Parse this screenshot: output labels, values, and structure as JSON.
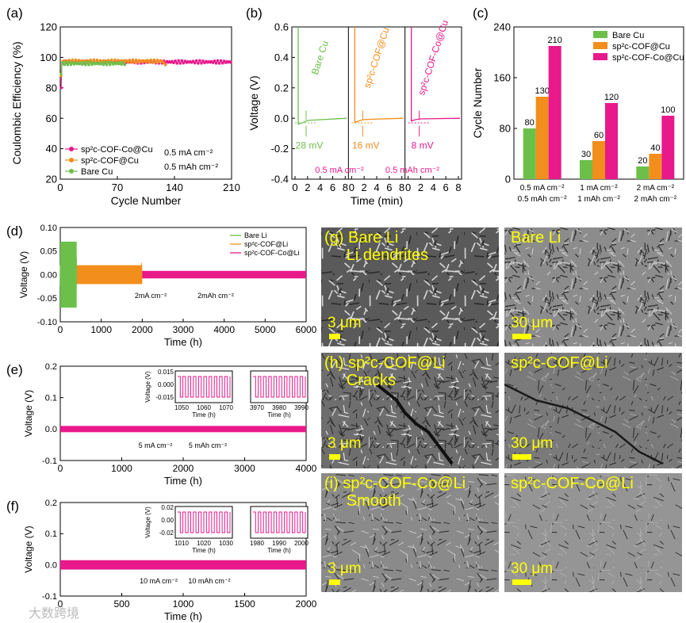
{
  "chart_data": [
    {
      "id": "a",
      "type": "scatter",
      "panel_label": "(a)",
      "xlabel": "Cycle Number",
      "ylabel": "Coulombic Efficiency (%)",
      "xlim": [
        0,
        210
      ],
      "ylim": [
        20,
        120
      ],
      "xticks": [
        "0",
        "70",
        "140",
        "210"
      ],
      "yticks": [
        "20",
        "40",
        "60",
        "80",
        "100",
        "120"
      ],
      "annotations": [
        "0.5 mA cm⁻²",
        "0.5 mAh cm⁻²"
      ],
      "series": [
        {
          "name": "sp²c-COF-Co@Cu",
          "color": "#e8198b",
          "cycles": 210,
          "first": 80,
          "plateau": 97
        },
        {
          "name": "sp²c-COF@Cu",
          "color": "#f28e1c",
          "cycles": 130,
          "first": 88,
          "plateau": 97.5
        },
        {
          "name": "Bare Cu",
          "color": "#6cc04a",
          "cycles": 80,
          "first": 89,
          "plateau": 96
        }
      ]
    },
    {
      "id": "b",
      "type": "line",
      "panel_label": "(b)",
      "xlabel": "Time (min)",
      "ylabel": "Voltage (V)",
      "ylim": [
        -0.4,
        0.6
      ],
      "yticks": [
        "-0.4",
        "-0.2",
        "0.0",
        "0.2",
        "0.4",
        "0.6"
      ],
      "xticks": [
        "0",
        "2",
        "4",
        "6",
        "8",
        "0",
        "2",
        "4",
        "6",
        "8",
        "0",
        "2",
        "4",
        "6",
        "8"
      ],
      "annotations": [
        "0.5 mA cm⁻²",
        "0.5 mAh cm⁻²"
      ],
      "series": [
        {
          "name": "Bare Cu",
          "color": "#6cc04a",
          "overpotential": "28 mV",
          "nucleation_v": -0.028
        },
        {
          "name": "sp²c-COF@Cu",
          "color": "#f28e1c",
          "overpotential": "16 mV",
          "nucleation_v": -0.016
        },
        {
          "name": "sp²c-COF-Co@Cu",
          "color": "#e8198b",
          "overpotential": "8 mV",
          "nucleation_v": -0.008
        }
      ]
    },
    {
      "id": "c",
      "type": "bar",
      "panel_label": "(c)",
      "ylabel": "Cycle Number",
      "ylim": [
        0,
        240
      ],
      "yticks": [
        "0",
        "80",
        "160",
        "240"
      ],
      "categories": [
        [
          "0.5 mA cm⁻²",
          "0.5 mAh cm⁻²"
        ],
        [
          "1 mA cm⁻²",
          "1 mAh cm⁻²"
        ],
        [
          "2 mA cm⁻²",
          "2 mAh cm⁻²"
        ]
      ],
      "series": [
        {
          "name": "Bare Cu",
          "color": "#6cc04a",
          "values": [
            80,
            30,
            20
          ]
        },
        {
          "name": "sp²c-COF@Cu",
          "color": "#f28e1c",
          "values": [
            130,
            60,
            40
          ]
        },
        {
          "name": "sp²c-COF-Co@Cu",
          "color": "#e8198b",
          "values": [
            210,
            120,
            100
          ]
        }
      ]
    },
    {
      "id": "d",
      "type": "line",
      "panel_label": "(d)",
      "xlabel": "Time (h)",
      "ylabel": "Voltage (V)",
      "xlim": [
        0,
        6000
      ],
      "ylim": [
        -0.1,
        0.1
      ],
      "xticks": [
        "0",
        "1000",
        "2000",
        "3000",
        "4000",
        "5000",
        "6000"
      ],
      "yticks": [
        "-0.10",
        "-0.05",
        "0.00",
        "0.05",
        "0.10"
      ],
      "annotations": [
        "2mA cm⁻²",
        "2mAh cm⁻²"
      ],
      "series": [
        {
          "name": "Bare Li",
          "color": "#6cc04a",
          "end_h": 400,
          "amp": 0.07
        },
        {
          "name": "sp²c-COF@Li",
          "color": "#f28e1c",
          "end_h": 2000,
          "amp": 0.02
        },
        {
          "name": "sp²c-COF-Co@Li",
          "color": "#e8198b",
          "end_h": 6000,
          "amp": 0.008
        }
      ]
    },
    {
      "id": "e",
      "type": "line",
      "panel_label": "(e)",
      "xlabel": "Time (h)",
      "ylabel": "Voltage (V)",
      "xlim": [
        0,
        4000
      ],
      "ylim": [
        -0.1,
        0.2
      ],
      "xticks": [
        "0",
        "1000",
        "2000",
        "3000",
        "4000"
      ],
      "yticks": [
        "-0.1",
        "0.0",
        "0.1",
        "0.2"
      ],
      "annotations": [
        "5 mA cm⁻²",
        "5 mAh cm⁻²"
      ],
      "series": [
        {
          "name": "sp²c-COF-Co@Li",
          "color": "#e8198b",
          "amp": 0.01
        }
      ],
      "insets": [
        {
          "xlabel": "Time (h)",
          "ylabel": "Voltage (V)",
          "xticks": [
            "1050",
            "1060",
            "1070"
          ],
          "yticks": [
            "-0.015",
            "0.000",
            "0.015"
          ],
          "cycles": 10
        },
        {
          "xlabel": "Time (h)",
          "ylabel": "",
          "xticks": [
            "3970",
            "3980",
            "3990"
          ],
          "yticks": [],
          "cycles": 10
        }
      ]
    },
    {
      "id": "f",
      "type": "line",
      "panel_label": "(f)",
      "xlabel": "Time (h)",
      "ylabel": "Voltage (V)",
      "xlim": [
        0,
        2000
      ],
      "ylim": [
        -0.1,
        0.2
      ],
      "xticks": [
        "0",
        "500",
        "1000",
        "1500",
        "2000"
      ],
      "yticks": [
        "-0.1",
        "0.0",
        "0.1",
        "0.2"
      ],
      "annotations": [
        "10 mA cm⁻²",
        "10 mAh cm⁻²"
      ],
      "series": [
        {
          "name": "sp²c-COF-Co@Li",
          "color": "#e8198b",
          "amp": 0.015
        }
      ],
      "insets": [
        {
          "xlabel": "Time (h)",
          "ylabel": "Voltage (V)",
          "xticks": [
            "1010",
            "1020",
            "1030"
          ],
          "yticks": [
            "-0.02",
            "0.00",
            "0.02"
          ],
          "cycles": 10
        },
        {
          "xlabel": "Time (h)",
          "ylabel": "",
          "xticks": [
            "1980",
            "1990",
            "2000"
          ],
          "yticks": [],
          "cycles": 10
        }
      ]
    }
  ],
  "sem": {
    "g_left": {
      "lines": [
        "(g) Bare Li",
        "     Li dendrites"
      ],
      "scale": "3 μm"
    },
    "g_right": {
      "lines": [
        "Bare Li"
      ],
      "scale": "30 μm"
    },
    "h_left": {
      "lines": [
        "(h) sp²c-COF@Li",
        "     Cracks"
      ],
      "scale": "3 μm"
    },
    "h_right": {
      "lines": [
        "sp²c-COF@Li"
      ],
      "scale": "30 μm"
    },
    "i_left": {
      "lines": [
        "(i) sp²c-COF-Co@Li",
        "     Smooth"
      ],
      "scale": "3 μm"
    },
    "i_right": {
      "lines": [
        "sp²c-COF-Co@Li"
      ],
      "scale": "30 μm"
    }
  },
  "watermark": "大数跨境"
}
